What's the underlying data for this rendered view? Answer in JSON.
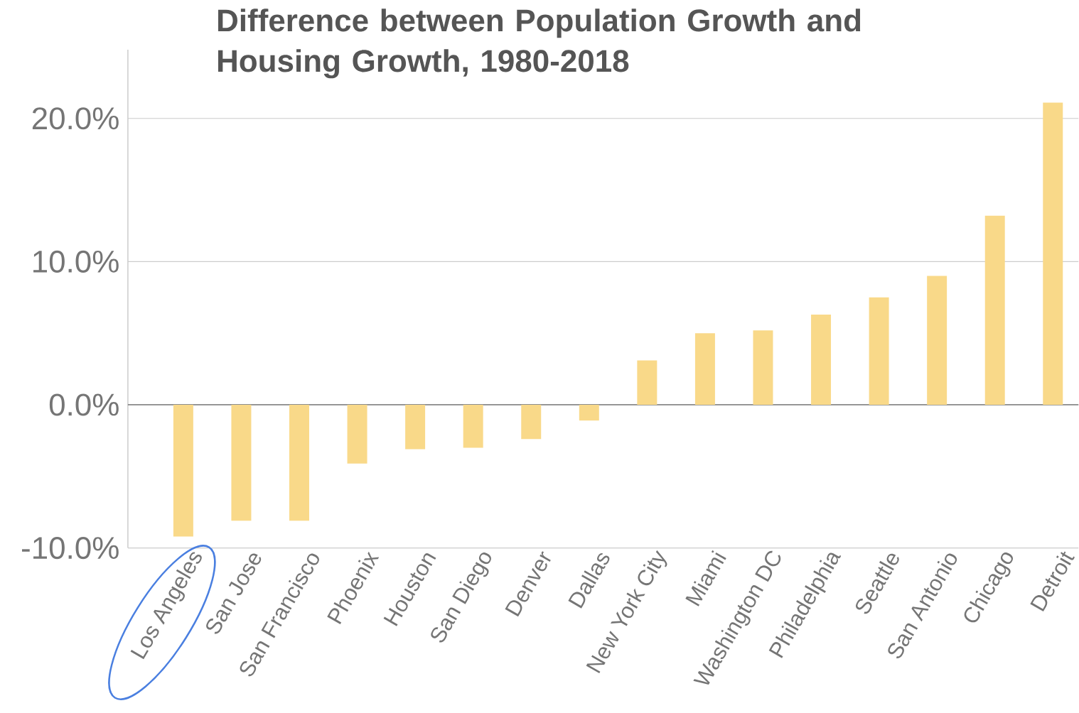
{
  "chart_data": {
    "type": "bar",
    "title": "Difference between Population Growth and Housing Growth, 1980-2018",
    "categories": [
      "Los Angeles",
      "San Jose",
      "San Francisco",
      "Phoenix",
      "Houston",
      "San Diego",
      "Denver",
      "Dallas",
      "New York City",
      "Miami",
      "Washington DC",
      "Philadelphia",
      "Seattle",
      "San Antonio",
      "Chicago",
      "Detroit"
    ],
    "values": [
      -9.2,
      -8.1,
      -8.1,
      -4.1,
      -3.1,
      -3.0,
      -2.4,
      -1.1,
      3.1,
      5.0,
      5.2,
      6.3,
      7.5,
      9.0,
      13.2,
      21.1
    ],
    "color": "#f9d989",
    "ylim": [
      -10,
      24.8
    ],
    "yticks": [
      {
        "value": -10,
        "label": "-10.0%"
      },
      {
        "value": 0,
        "label": "0.0%"
      },
      {
        "value": 10,
        "label": "10.0%"
      },
      {
        "value": 20,
        "label": "20.0%"
      }
    ],
    "grid": "y"
  }
}
